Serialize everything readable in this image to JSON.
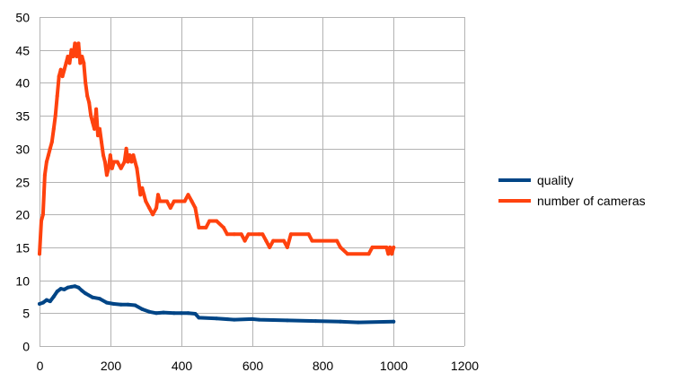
{
  "chart_data": {
    "type": "line",
    "title": "",
    "xlabel": "",
    "ylabel": "",
    "xlim": [
      0,
      1200
    ],
    "ylim": [
      0,
      50
    ],
    "x_ticks": [
      0,
      200,
      400,
      600,
      800,
      1000,
      1200
    ],
    "y_ticks": [
      0,
      5,
      10,
      15,
      20,
      25,
      30,
      35,
      40,
      45,
      50
    ],
    "grid": true,
    "legend_position": "right",
    "series": [
      {
        "name": "quality",
        "color": "#004586",
        "points": [
          [
            0,
            6.4
          ],
          [
            10,
            6.6
          ],
          [
            20,
            7.0
          ],
          [
            30,
            6.8
          ],
          [
            40,
            7.5
          ],
          [
            50,
            8.3
          ],
          [
            60,
            8.7
          ],
          [
            70,
            8.6
          ],
          [
            80,
            8.9
          ],
          [
            90,
            9.0
          ],
          [
            100,
            9.1
          ],
          [
            110,
            8.9
          ],
          [
            120,
            8.4
          ],
          [
            130,
            8.0
          ],
          [
            150,
            7.4
          ],
          [
            170,
            7.2
          ],
          [
            190,
            6.6
          ],
          [
            210,
            6.4
          ],
          [
            230,
            6.3
          ],
          [
            250,
            6.3
          ],
          [
            270,
            6.2
          ],
          [
            290,
            5.6
          ],
          [
            310,
            5.2
          ],
          [
            330,
            5.0
          ],
          [
            350,
            5.1
          ],
          [
            380,
            5.0
          ],
          [
            400,
            5.0
          ],
          [
            420,
            5.0
          ],
          [
            440,
            4.9
          ],
          [
            450,
            4.3
          ],
          [
            500,
            4.2
          ],
          [
            550,
            4.0
          ],
          [
            600,
            4.1
          ],
          [
            620,
            4.0
          ],
          [
            700,
            3.9
          ],
          [
            780,
            3.8
          ],
          [
            850,
            3.7
          ],
          [
            900,
            3.6
          ],
          [
            1000,
            3.7
          ]
        ]
      },
      {
        "name": "number of cameras",
        "color": "#ff420e",
        "points": [
          [
            0,
            14
          ],
          [
            5,
            19
          ],
          [
            10,
            20
          ],
          [
            15,
            26
          ],
          [
            20,
            28
          ],
          [
            25,
            29
          ],
          [
            30,
            30
          ],
          [
            35,
            31
          ],
          [
            40,
            33
          ],
          [
            45,
            35
          ],
          [
            50,
            38
          ],
          [
            55,
            41
          ],
          [
            60,
            42
          ],
          [
            65,
            41
          ],
          [
            70,
            42
          ],
          [
            75,
            43
          ],
          [
            80,
            44
          ],
          [
            85,
            43
          ],
          [
            90,
            45
          ],
          [
            95,
            44
          ],
          [
            100,
            46
          ],
          [
            105,
            44
          ],
          [
            110,
            46
          ],
          [
            115,
            43
          ],
          [
            120,
            44
          ],
          [
            125,
            43
          ],
          [
            130,
            40
          ],
          [
            135,
            38
          ],
          [
            140,
            37
          ],
          [
            145,
            35
          ],
          [
            150,
            34
          ],
          [
            155,
            33
          ],
          [
            160,
            36
          ],
          [
            165,
            32
          ],
          [
            170,
            33
          ],
          [
            175,
            31
          ],
          [
            180,
            29
          ],
          [
            185,
            28
          ],
          [
            190,
            26
          ],
          [
            195,
            27
          ],
          [
            200,
            29
          ],
          [
            205,
            27
          ],
          [
            210,
            28
          ],
          [
            220,
            28
          ],
          [
            230,
            27
          ],
          [
            240,
            28
          ],
          [
            245,
            30
          ],
          [
            250,
            28
          ],
          [
            255,
            29
          ],
          [
            260,
            28
          ],
          [
            265,
            29
          ],
          [
            270,
            28
          ],
          [
            275,
            27
          ],
          [
            280,
            25
          ],
          [
            285,
            23
          ],
          [
            290,
            24
          ],
          [
            295,
            23
          ],
          [
            300,
            22
          ],
          [
            310,
            21
          ],
          [
            320,
            20
          ],
          [
            330,
            21
          ],
          [
            335,
            23
          ],
          [
            340,
            22
          ],
          [
            350,
            22
          ],
          [
            360,
            22
          ],
          [
            370,
            21
          ],
          [
            380,
            22
          ],
          [
            400,
            22
          ],
          [
            410,
            22
          ],
          [
            420,
            23
          ],
          [
            430,
            22
          ],
          [
            440,
            21
          ],
          [
            450,
            18
          ],
          [
            470,
            18
          ],
          [
            480,
            19
          ],
          [
            500,
            19
          ],
          [
            520,
            18
          ],
          [
            530,
            17
          ],
          [
            550,
            17
          ],
          [
            570,
            17
          ],
          [
            580,
            16
          ],
          [
            590,
            17
          ],
          [
            620,
            17
          ],
          [
            630,
            17
          ],
          [
            640,
            16
          ],
          [
            650,
            15
          ],
          [
            660,
            16
          ],
          [
            690,
            16
          ],
          [
            700,
            15
          ],
          [
            710,
            17
          ],
          [
            760,
            17
          ],
          [
            770,
            16
          ],
          [
            840,
            16
          ],
          [
            850,
            15
          ],
          [
            870,
            14
          ],
          [
            930,
            14
          ],
          [
            940,
            15
          ],
          [
            980,
            15
          ],
          [
            985,
            14
          ],
          [
            990,
            15
          ],
          [
            995,
            14
          ],
          [
            1000,
            15
          ]
        ]
      }
    ]
  }
}
